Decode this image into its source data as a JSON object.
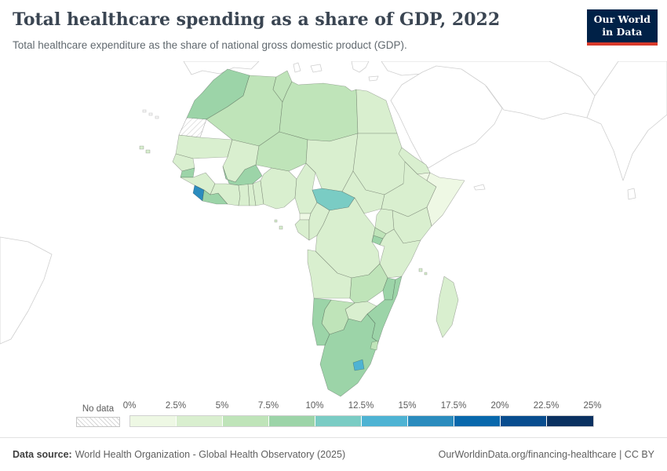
{
  "header": {
    "title": "Total healthcare spending as a share of GDP, 2022",
    "subtitle": "Total healthcare expenditure as the share of national gross domestic product (GDP).",
    "logo": {
      "line1": "Our World",
      "line2": "in Data",
      "bg_color": "#002147",
      "accent_color": "#d93a2b"
    }
  },
  "footer": {
    "source_label": "Data source:",
    "source_text": "World Health Organization - Global Health Observatory (2025)",
    "link_text": "OurWorldinData.org/financing-healthcare | CC BY"
  },
  "chart_data": {
    "type": "choropleth",
    "title": "Total healthcare spending as a share of GDP, 2022",
    "unit": "% of GDP",
    "region_shown": "Africa",
    "bins": {
      "start": 0,
      "end": 25,
      "step": 2.5,
      "tick_labels": [
        "0%",
        "2.5%",
        "5%",
        "7.5%",
        "10%",
        "12.5%",
        "15%",
        "17.5%",
        "20%",
        "22.5%",
        "25%"
      ],
      "colors": [
        "#eef8e4",
        "#d9efcf",
        "#bfe4b9",
        "#9cd4a8",
        "#7accc4",
        "#4eb3d3",
        "#2b8cbe",
        "#0868ac",
        "#084d8f",
        "#0a3161"
      ],
      "no_data_label": "No data"
    },
    "countries": [
      {
        "name": "Morocco",
        "value": 7.7
      },
      {
        "name": "Western Sahara",
        "value": null
      },
      {
        "name": "Algeria",
        "value": 6.3
      },
      {
        "name": "Tunisia",
        "value": 7.3
      },
      {
        "name": "Libya",
        "value": 5.5
      },
      {
        "name": "Egypt",
        "value": 4.4
      },
      {
        "name": "Mauritania",
        "value": 3.6
      },
      {
        "name": "Senegal",
        "value": 4.1
      },
      {
        "name": "Mali",
        "value": 4.0
      },
      {
        "name": "Niger",
        "value": 5.7
      },
      {
        "name": "Chad",
        "value": 3.6
      },
      {
        "name": "Sudan",
        "value": 4.6
      },
      {
        "name": "Eritrea",
        "value": 4.1
      },
      {
        "name": "Djibouti",
        "value": 1.8
      },
      {
        "name": "Somalia",
        "value": 2.0
      },
      {
        "name": "Ethiopia",
        "value": 3.5
      },
      {
        "name": "South Sudan",
        "value": 4.8
      },
      {
        "name": "Guinea-Bissau",
        "value": 7.9
      },
      {
        "name": "Guinea",
        "value": 3.8
      },
      {
        "name": "Sierra Leone",
        "value": 15.4
      },
      {
        "name": "Liberia",
        "value": 9.0
      },
      {
        "name": "Côte d'Ivoire",
        "value": 3.9
      },
      {
        "name": "Ghana",
        "value": 4.0
      },
      {
        "name": "Togo",
        "value": 4.2
      },
      {
        "name": "Benin",
        "value": 3.1
      },
      {
        "name": "Burkina Faso",
        "value": 7.7
      },
      {
        "name": "Nigeria",
        "value": 3.9
      },
      {
        "name": "Cameroon",
        "value": 3.8
      },
      {
        "name": "Central African Republic",
        "value": 10.7
      },
      {
        "name": "Equatorial Guinea",
        "value": 2.3
      },
      {
        "name": "Gabon",
        "value": 3.1
      },
      {
        "name": "Congo",
        "value": 3.0
      },
      {
        "name": "Democratic Republic of Congo",
        "value": 4.1
      },
      {
        "name": "Uganda",
        "value": 3.9
      },
      {
        "name": "Kenya",
        "value": 4.5
      },
      {
        "name": "Rwanda",
        "value": 7.2
      },
      {
        "name": "Burundi",
        "value": 7.6
      },
      {
        "name": "Tanzania",
        "value": 3.8
      },
      {
        "name": "Angola",
        "value": 2.9
      },
      {
        "name": "Zambia",
        "value": 5.3
      },
      {
        "name": "Malawi",
        "value": 8.8
      },
      {
        "name": "Mozambique",
        "value": 8.1
      },
      {
        "name": "Zimbabwe",
        "value": 3.4
      },
      {
        "name": "Botswana",
        "value": 6.2
      },
      {
        "name": "Namibia",
        "value": 8.5
      },
      {
        "name": "South Africa",
        "value": 8.6
      },
      {
        "name": "Lesotho",
        "value": 12.8
      },
      {
        "name": "Eswatini",
        "value": 6.8
      },
      {
        "name": "Madagascar",
        "value": 3.7
      },
      {
        "name": "Cape Verde",
        "value": 4.8
      },
      {
        "name": "Comoros",
        "value": 4.6
      },
      {
        "name": "Sao Tome and Principe",
        "value": 4.3
      }
    ]
  }
}
